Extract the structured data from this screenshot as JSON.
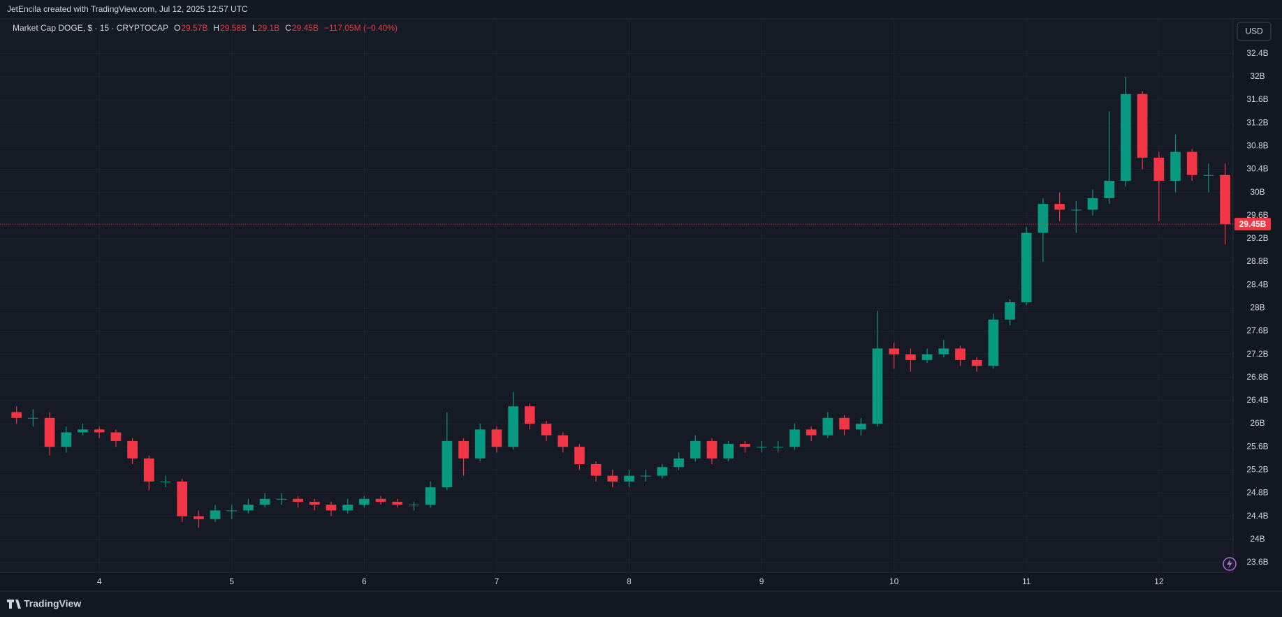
{
  "header": {
    "credit": "JetEncila created with TradingView.com, Jul 12, 2025 12:57 UTC"
  },
  "currency_button": "USD",
  "footer": {
    "brand": "TradingView"
  },
  "chart_data": {
    "type": "candlestick",
    "title": "Market Cap DOGE, $ · 15 · CRYPTOCAP",
    "ohlc_legend": [
      {
        "key": "O",
        "value": "29.57B"
      },
      {
        "key": "H",
        "value": "29.58B"
      },
      {
        "key": "L",
        "value": "29.1B"
      },
      {
        "key": "C",
        "value": "29.45B"
      }
    ],
    "change": "−117.05M (−0.40%)",
    "up_color": "#089981",
    "down_color": "#f23645",
    "grid": true,
    "x": [
      3.375,
      3.5,
      3.625,
      3.75,
      3.875,
      4,
      4.125,
      4.25,
      4.375,
      4.5,
      4.625,
      4.75,
      4.875,
      5,
      5.125,
      5.25,
      5.375,
      5.5,
      5.625,
      5.75,
      5.875,
      6,
      6.125,
      6.25,
      6.375,
      6.5,
      6.625,
      6.75,
      6.875,
      7,
      7.125,
      7.25,
      7.375,
      7.5,
      7.625,
      7.75,
      7.875,
      8,
      8.125,
      8.25,
      8.375,
      8.5,
      8.625,
      8.75,
      8.875,
      9,
      9.125,
      9.25,
      9.375,
      9.5,
      9.625,
      9.75,
      9.875,
      10,
      10.125,
      10.25,
      10.375,
      10.5,
      10.625,
      10.75,
      10.875,
      11,
      11.125,
      11.25,
      11.375,
      11.5,
      11.625,
      11.75,
      11.875,
      12,
      12.125,
      12.25,
      12.375,
      12.5
    ],
    "open": [
      26.2,
      26.1,
      26.1,
      25.6,
      25.85,
      25.9,
      25.85,
      25.7,
      25.4,
      25.0,
      25.0,
      24.4,
      24.35,
      24.5,
      24.5,
      24.6,
      24.7,
      24.7,
      24.65,
      24.6,
      24.5,
      24.6,
      24.7,
      24.65,
      24.6,
      24.6,
      24.9,
      25.7,
      25.4,
      25.9,
      25.6,
      26.3,
      26.0,
      25.8,
      25.6,
      25.3,
      25.1,
      25.0,
      25.1,
      25.1,
      25.25,
      25.4,
      25.7,
      25.4,
      25.65,
      25.6,
      25.6,
      25.6,
      25.9,
      25.8,
      26.1,
      25.9,
      26.0,
      27.3,
      27.2,
      27.1,
      27.2,
      27.3,
      27.1,
      27.0,
      27.8,
      28.1,
      29.3,
      29.8,
      29.7,
      29.7,
      29.9,
      30.2,
      31.7,
      30.6,
      30.2,
      30.7,
      30.3,
      30.3
    ],
    "high": [
      26.3,
      26.25,
      26.2,
      25.95,
      26.0,
      25.95,
      25.9,
      25.75,
      25.45,
      25.1,
      25.05,
      24.5,
      24.6,
      24.6,
      24.7,
      24.8,
      24.8,
      24.75,
      24.7,
      24.65,
      24.7,
      24.75,
      24.75,
      24.7,
      24.65,
      25.0,
      26.2,
      25.75,
      26.0,
      25.95,
      26.55,
      26.35,
      26.05,
      25.85,
      25.65,
      25.35,
      25.2,
      25.2,
      25.2,
      25.3,
      25.5,
      25.8,
      25.75,
      25.7,
      25.7,
      25.7,
      25.7,
      26.0,
      25.95,
      26.2,
      26.15,
      26.1,
      27.95,
      27.4,
      27.3,
      27.3,
      27.45,
      27.35,
      27.15,
      27.9,
      28.15,
      29.4,
      29.9,
      30.0,
      29.85,
      30.05,
      31.4,
      32.0,
      31.75,
      30.7,
      31.0,
      30.75,
      30.5,
      30.5
    ],
    "low": [
      26.0,
      25.95,
      25.45,
      25.5,
      25.8,
      25.75,
      25.6,
      25.3,
      24.85,
      24.9,
      24.3,
      24.2,
      24.3,
      24.35,
      24.45,
      24.55,
      24.6,
      24.55,
      24.5,
      24.4,
      24.45,
      24.55,
      24.6,
      24.55,
      24.5,
      24.55,
      24.85,
      25.1,
      25.35,
      25.5,
      25.55,
      25.9,
      25.7,
      25.5,
      25.2,
      25.0,
      24.9,
      24.9,
      25.0,
      25.05,
      25.2,
      25.35,
      25.3,
      25.35,
      25.5,
      25.5,
      25.5,
      25.55,
      25.7,
      25.75,
      25.8,
      25.8,
      25.95,
      26.95,
      26.9,
      27.05,
      27.15,
      27.0,
      26.9,
      26.95,
      27.7,
      28.05,
      28.8,
      29.5,
      29.3,
      29.6,
      29.8,
      30.1,
      30.4,
      29.5,
      30.0,
      30.2,
      30.0,
      29.1
    ],
    "close": [
      26.1,
      26.1,
      25.6,
      25.85,
      25.9,
      25.85,
      25.7,
      25.4,
      25.0,
      25.0,
      24.4,
      24.35,
      24.5,
      24.5,
      24.6,
      24.7,
      24.7,
      24.65,
      24.6,
      24.5,
      24.6,
      24.7,
      24.65,
      24.6,
      24.6,
      24.9,
      25.7,
      25.4,
      25.9,
      25.6,
      26.3,
      26.0,
      25.8,
      25.6,
      25.3,
      25.1,
      25.0,
      25.1,
      25.1,
      25.25,
      25.4,
      25.7,
      25.4,
      25.65,
      25.6,
      25.6,
      25.6,
      25.9,
      25.8,
      26.1,
      25.9,
      26.0,
      27.3,
      27.2,
      27.1,
      27.2,
      27.3,
      27.1,
      27.0,
      27.8,
      28.1,
      29.3,
      29.8,
      29.7,
      29.7,
      29.9,
      30.2,
      31.7,
      30.6,
      30.2,
      30.7,
      30.3,
      30.3,
      29.45
    ],
    "last_price": {
      "value": 29.45,
      "label": "29.45B"
    },
    "xlim": [
      3.25,
      12.56
    ],
    "xticks": [
      4,
      5,
      6,
      7,
      8,
      9,
      10,
      11,
      12
    ],
    "ylim": [
      23.43,
      33.0
    ],
    "yticks": [
      {
        "value": 23.6,
        "label": "23.6B"
      },
      {
        "value": 24,
        "label": "24B"
      },
      {
        "value": 24.4,
        "label": "24.4B"
      },
      {
        "value": 24.8,
        "label": "24.8B"
      },
      {
        "value": 25.2,
        "label": "25.2B"
      },
      {
        "value": 25.6,
        "label": "25.6B"
      },
      {
        "value": 26,
        "label": "26B"
      },
      {
        "value": 26.4,
        "label": "26.4B"
      },
      {
        "value": 26.8,
        "label": "26.8B"
      },
      {
        "value": 27.2,
        "label": "27.2B"
      },
      {
        "value": 27.6,
        "label": "27.6B"
      },
      {
        "value": 28,
        "label": "28B"
      },
      {
        "value": 28.4,
        "label": "28.4B"
      },
      {
        "value": 28.8,
        "label": "28.8B"
      },
      {
        "value": 29.2,
        "label": "29.2B"
      },
      {
        "value": 29.6,
        "label": "29.6B"
      },
      {
        "value": 30,
        "label": "30B"
      },
      {
        "value": 30.4,
        "label": "30.4B"
      },
      {
        "value": 30.8,
        "label": "30.8B"
      },
      {
        "value": 31.2,
        "label": "31.2B"
      },
      {
        "value": 31.6,
        "label": "31.6B"
      },
      {
        "value": 32,
        "label": "32B"
      },
      {
        "value": 32.4,
        "label": "32.4B"
      }
    ]
  }
}
